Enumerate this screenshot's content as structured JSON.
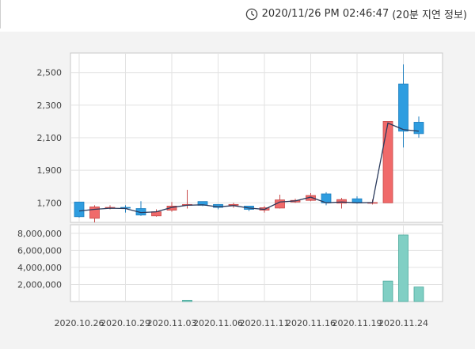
{
  "header": {
    "timestamp": "2020/11/26 PM 02:46:47",
    "delay_note": "(20분 지연 정보)",
    "icon": "clock-icon"
  },
  "chart_data": [
    {
      "type": "candlestick",
      "price_ticks": [
        "2,500",
        "2,300",
        "2,100",
        "1,900",
        "1,700"
      ],
      "ylim": [
        1580,
        2620
      ],
      "date_labels": [
        "2020.10.26",
        "2020.10.29",
        "2020.11.03",
        "2020.11.06",
        "2020.11.11",
        "2020.11.16",
        "2020.11.19",
        "2020.11.24"
      ],
      "colors": {
        "up": "#f06a6a",
        "down": "#2e9de0",
        "ma_line": "#2a3a5c",
        "volume": "#80cfc4"
      },
      "candles": [
        {
          "open": 1705,
          "high": 1705,
          "low": 1610,
          "close": 1615
        },
        {
          "open": 1605,
          "high": 1685,
          "low": 1580,
          "close": 1675
        },
        {
          "open": 1670,
          "high": 1685,
          "low": 1660,
          "close": 1672
        },
        {
          "open": 1672,
          "high": 1685,
          "low": 1640,
          "close": 1668
        },
        {
          "open": 1665,
          "high": 1710,
          "low": 1620,
          "close": 1625
        },
        {
          "open": 1620,
          "high": 1660,
          "low": 1615,
          "close": 1645
        },
        {
          "open": 1655,
          "high": 1705,
          "low": 1645,
          "close": 1680
        },
        {
          "open": 1685,
          "high": 1780,
          "low": 1665,
          "close": 1690
        },
        {
          "open": 1708,
          "high": 1708,
          "low": 1680,
          "close": 1685
        },
        {
          "open": 1690,
          "high": 1690,
          "low": 1660,
          "close": 1672
        },
        {
          "open": 1685,
          "high": 1700,
          "low": 1670,
          "close": 1690
        },
        {
          "open": 1680,
          "high": 1680,
          "low": 1650,
          "close": 1660
        },
        {
          "open": 1655,
          "high": 1680,
          "low": 1640,
          "close": 1670
        },
        {
          "open": 1668,
          "high": 1750,
          "low": 1665,
          "close": 1718
        },
        {
          "open": 1705,
          "high": 1725,
          "low": 1700,
          "close": 1715
        },
        {
          "open": 1715,
          "high": 1760,
          "low": 1710,
          "close": 1745
        },
        {
          "open": 1755,
          "high": 1765,
          "low": 1685,
          "close": 1700
        },
        {
          "open": 1698,
          "high": 1730,
          "low": 1665,
          "close": 1720
        },
        {
          "open": 1725,
          "high": 1740,
          "low": 1695,
          "close": 1700
        },
        {
          "open": 1700,
          "high": 1720,
          "low": 1690,
          "close": 1702
        },
        {
          "open": 1700,
          "high": 2200,
          "low": 1700,
          "close": 2200
        },
        {
          "open": 2430,
          "high": 2550,
          "low": 2040,
          "close": 2140
        },
        {
          "open": 2195,
          "high": 2230,
          "low": 2100,
          "close": 2125
        }
      ],
      "ma": [
        1650,
        1660,
        1667,
        1665,
        1640,
        1645,
        1672,
        1685,
        1688,
        1675,
        1683,
        1668,
        1660,
        1705,
        1712,
        1735,
        1700,
        1705,
        1700,
        1702,
        2190,
        2150,
        2140
      ]
    },
    {
      "type": "bar",
      "volume_ticks": [
        "8,000,000",
        "6,000,000",
        "4,000,000",
        "2,000,000"
      ],
      "ylim": [
        0,
        9000000
      ],
      "values": [
        0,
        0,
        0,
        0,
        0,
        0,
        0,
        150000,
        0,
        0,
        0,
        0,
        0,
        0,
        0,
        0,
        0,
        0,
        0,
        0,
        2400000,
        7800000,
        1700000
      ]
    }
  ]
}
